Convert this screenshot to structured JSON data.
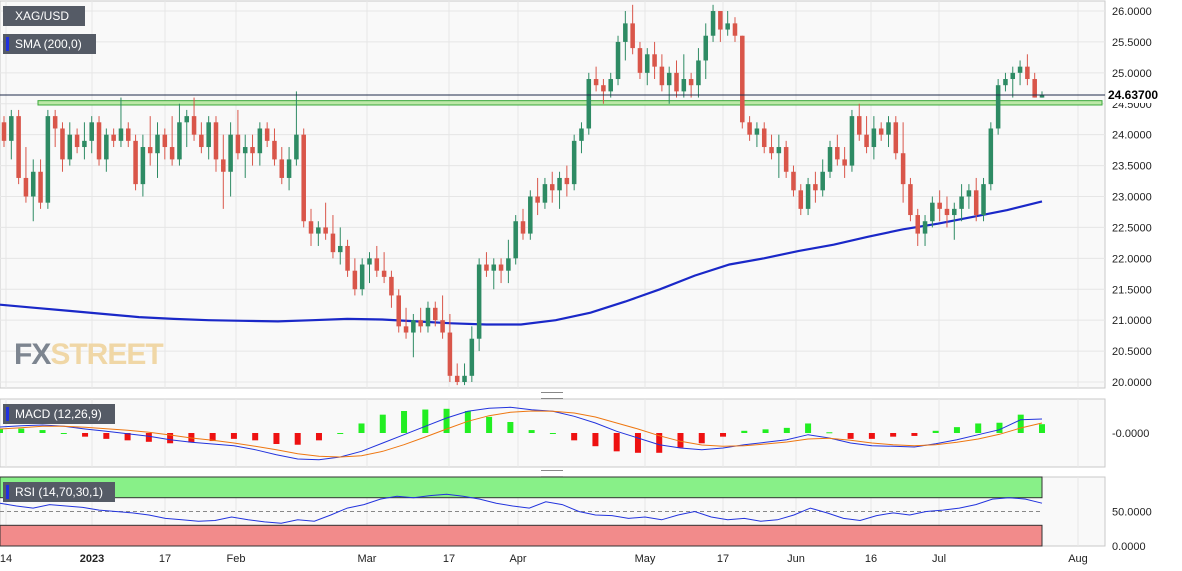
{
  "instrument": "XAG/USD",
  "indicators": {
    "sma_label": "SMA (200,0)",
    "macd_label": "MACD (12,26,9)",
    "rsi_label": "RSI (14,70,30,1)"
  },
  "last_price_label": "24.63700",
  "watermark": {
    "part1": "FX",
    "part2": "STREET"
  },
  "colors": {
    "bull": "#2e8b64",
    "bear": "#d9564a",
    "sma": "#1a28c8",
    "macd_line": "#2233dd",
    "signal_line": "#ee7711",
    "hist_pos": "#22ee22",
    "hist_neg": "#ee1111",
    "rsi_overbought_zone": "#88f088",
    "rsi_oversold_zone": "#f28b8b",
    "support_zone": "#bde8a8"
  },
  "chart_data": [
    {
      "type": "candlestick",
      "instrument": "XAG/USD",
      "timeframe": "daily",
      "y_axis_ticks": [
        "20.0000",
        "20.5000",
        "21.0000",
        "21.5000",
        "22.0000",
        "22.5000",
        "23.0000",
        "23.5000",
        "24.0000",
        "24.5000",
        "25.0000",
        "25.5000",
        "26.0000"
      ],
      "ylim": [
        19.95,
        26.15
      ],
      "x_axis_ticks": [
        "14",
        "2023",
        "17",
        "Feb",
        "Mar",
        "17",
        "Apr",
        "May",
        "17",
        "Jun",
        "16",
        "Jul",
        "Aug"
      ],
      "last_price": 24.637,
      "support_zone": [
        24.48,
        24.55
      ],
      "candles_ohlc": [
        [
          24.2,
          24.3,
          23.8,
          23.9
        ],
        [
          23.9,
          24.4,
          23.6,
          24.3
        ],
        [
          24.3,
          24.4,
          23.2,
          23.3
        ],
        [
          23.3,
          23.8,
          22.9,
          23.0
        ],
        [
          23.0,
          23.6,
          22.6,
          23.4
        ],
        [
          23.4,
          23.6,
          22.8,
          22.9
        ],
        [
          22.9,
          24.4,
          22.8,
          24.3
        ],
        [
          24.3,
          24.4,
          23.8,
          24.1
        ],
        [
          24.1,
          24.2,
          23.4,
          23.6
        ],
        [
          23.6,
          24.2,
          23.5,
          24.0
        ],
        [
          24.0,
          24.1,
          23.7,
          23.8
        ],
        [
          23.8,
          24.2,
          23.6,
          23.9
        ],
        [
          23.9,
          24.3,
          23.7,
          24.2
        ],
        [
          24.2,
          24.3,
          23.5,
          23.6
        ],
        [
          23.6,
          24.1,
          23.4,
          24.0
        ],
        [
          24.0,
          24.1,
          23.8,
          23.9
        ],
        [
          23.9,
          24.6,
          23.8,
          24.1
        ],
        [
          24.1,
          24.2,
          23.8,
          23.9
        ],
        [
          23.9,
          24.0,
          23.1,
          23.2
        ],
        [
          23.2,
          24.0,
          23.0,
          23.8
        ],
        [
          23.8,
          24.3,
          23.5,
          23.7
        ],
        [
          23.7,
          24.2,
          23.3,
          24.0
        ],
        [
          24.0,
          24.1,
          23.6,
          23.8
        ],
        [
          23.8,
          24.3,
          23.5,
          23.6
        ],
        [
          23.6,
          24.5,
          23.5,
          24.2
        ],
        [
          24.2,
          24.4,
          23.8,
          24.3
        ],
        [
          24.3,
          24.6,
          23.9,
          24.0
        ],
        [
          24.0,
          24.2,
          23.7,
          23.8
        ],
        [
          23.8,
          24.3,
          23.6,
          24.2
        ],
        [
          24.2,
          24.3,
          23.4,
          23.6
        ],
        [
          23.6,
          24.0,
          22.8,
          23.4
        ],
        [
          23.4,
          24.2,
          23.0,
          24.0
        ],
        [
          24.0,
          24.4,
          23.6,
          23.7
        ],
        [
          23.7,
          24.0,
          23.3,
          23.8
        ],
        [
          23.8,
          24.0,
          23.5,
          23.7
        ],
        [
          23.7,
          24.2,
          23.5,
          24.1
        ],
        [
          24.1,
          24.2,
          23.8,
          23.9
        ],
        [
          23.9,
          24.1,
          23.5,
          23.6
        ],
        [
          23.6,
          23.8,
          23.2,
          23.3
        ],
        [
          23.3,
          23.8,
          23.1,
          23.6
        ],
        [
          23.6,
          24.7,
          23.5,
          24.0
        ],
        [
          24.0,
          24.1,
          22.5,
          22.6
        ],
        [
          22.6,
          22.8,
          22.2,
          22.4
        ],
        [
          22.4,
          22.6,
          22.2,
          22.5
        ],
        [
          22.5,
          22.9,
          22.3,
          22.4
        ],
        [
          22.4,
          22.7,
          22.0,
          22.1
        ],
        [
          22.1,
          22.5,
          21.9,
          22.2
        ],
        [
          22.2,
          22.3,
          21.7,
          21.8
        ],
        [
          21.8,
          22.0,
          21.4,
          21.5
        ],
        [
          21.5,
          22.0,
          21.4,
          21.9
        ],
        [
          21.9,
          22.1,
          21.6,
          22.0
        ],
        [
          22.0,
          22.2,
          21.7,
          21.8
        ],
        [
          21.8,
          22.1,
          21.6,
          21.7
        ],
        [
          21.7,
          21.8,
          21.2,
          21.4
        ],
        [
          21.4,
          21.5,
          20.8,
          20.9
        ],
        [
          20.9,
          21.2,
          20.7,
          20.8
        ],
        [
          20.8,
          21.1,
          20.4,
          21.0
        ],
        [
          21.0,
          21.2,
          20.8,
          20.9
        ],
        [
          20.9,
          21.3,
          20.8,
          21.2
        ],
        [
          21.2,
          21.3,
          20.9,
          21.0
        ],
        [
          21.0,
          21.4,
          20.7,
          20.8
        ],
        [
          20.8,
          21.1,
          20.0,
          20.1
        ],
        [
          20.1,
          20.3,
          19.95,
          20.0
        ],
        [
          20.0,
          20.3,
          19.95,
          20.1
        ],
        [
          20.1,
          20.9,
          20.0,
          20.7
        ],
        [
          20.7,
          22.0,
          20.5,
          21.9
        ],
        [
          21.9,
          22.1,
          21.7,
          21.8
        ],
        [
          21.8,
          22.0,
          21.5,
          21.9
        ],
        [
          21.9,
          22.0,
          21.6,
          21.8
        ],
        [
          21.8,
          22.3,
          21.6,
          22.0
        ],
        [
          22.0,
          22.7,
          21.9,
          22.6
        ],
        [
          22.6,
          22.8,
          22.3,
          22.4
        ],
        [
          22.4,
          23.1,
          22.3,
          23.0
        ],
        [
          23.0,
          23.3,
          22.7,
          22.9
        ],
        [
          22.9,
          23.3,
          22.8,
          23.2
        ],
        [
          23.2,
          23.4,
          22.9,
          23.1
        ],
        [
          23.1,
          23.4,
          22.8,
          23.3
        ],
        [
          23.3,
          23.5,
          23.0,
          23.2
        ],
        [
          23.2,
          24.0,
          23.1,
          23.9
        ],
        [
          23.9,
          24.2,
          23.7,
          24.1
        ],
        [
          24.1,
          25.0,
          24.0,
          24.9
        ],
        [
          24.9,
          25.1,
          24.7,
          24.8
        ],
        [
          24.8,
          24.9,
          24.5,
          24.7
        ],
        [
          24.7,
          25.0,
          24.6,
          24.9
        ],
        [
          24.9,
          25.6,
          24.8,
          25.5
        ],
        [
          25.5,
          26.0,
          25.2,
          25.8
        ],
        [
          25.8,
          26.1,
          25.3,
          25.4
        ],
        [
          25.4,
          25.5,
          24.9,
          25.0
        ],
        [
          25.0,
          25.4,
          24.8,
          25.3
        ],
        [
          25.3,
          25.5,
          24.9,
          25.1
        ],
        [
          25.1,
          25.3,
          24.7,
          24.8
        ],
        [
          24.8,
          25.1,
          24.5,
          25.0
        ],
        [
          25.0,
          25.2,
          24.6,
          24.7
        ],
        [
          24.7,
          25.3,
          24.6,
          24.9
        ],
        [
          24.9,
          25.0,
          24.6,
          24.8
        ],
        [
          24.8,
          25.4,
          24.6,
          25.2
        ],
        [
          25.2,
          25.8,
          24.9,
          25.6
        ],
        [
          25.6,
          26.1,
          25.5,
          26.0
        ],
        [
          26.0,
          26.0,
          25.5,
          25.7
        ],
        [
          25.7,
          26.0,
          25.6,
          25.8
        ],
        [
          25.8,
          25.9,
          25.5,
          25.6
        ],
        [
          25.6,
          25.6,
          24.1,
          24.2
        ],
        [
          24.2,
          24.3,
          23.9,
          24.0
        ],
        [
          24.0,
          24.2,
          23.8,
          24.1
        ],
        [
          24.1,
          24.2,
          23.7,
          23.8
        ],
        [
          23.8,
          24.0,
          23.6,
          23.7
        ],
        [
          23.7,
          24.0,
          23.3,
          23.8
        ],
        [
          23.8,
          23.9,
          23.3,
          23.4
        ],
        [
          23.4,
          23.5,
          23.0,
          23.1
        ],
        [
          23.1,
          23.2,
          22.7,
          22.8
        ],
        [
          22.8,
          23.3,
          22.7,
          23.2
        ],
        [
          23.2,
          23.4,
          22.9,
          23.1
        ],
        [
          23.1,
          23.6,
          23.0,
          23.4
        ],
        [
          23.4,
          23.9,
          23.3,
          23.8
        ],
        [
          23.8,
          24.0,
          23.5,
          23.6
        ],
        [
          23.6,
          23.8,
          23.3,
          23.5
        ],
        [
          23.5,
          24.4,
          23.4,
          24.3
        ],
        [
          24.3,
          24.5,
          23.9,
          24.0
        ],
        [
          24.0,
          24.3,
          23.7,
          23.8
        ],
        [
          23.8,
          24.3,
          23.6,
          24.1
        ],
        [
          24.1,
          24.2,
          23.9,
          24.0
        ],
        [
          24.0,
          24.3,
          23.8,
          24.2
        ],
        [
          24.2,
          24.3,
          23.6,
          23.7
        ],
        [
          23.7,
          24.2,
          22.9,
          23.2
        ],
        [
          23.2,
          23.3,
          22.6,
          22.7
        ],
        [
          22.7,
          22.8,
          22.2,
          22.4
        ],
        [
          22.4,
          22.7,
          22.2,
          22.6
        ],
        [
          22.6,
          23.0,
          22.5,
          22.9
        ],
        [
          22.9,
          23.1,
          22.6,
          22.8
        ],
        [
          22.8,
          23.0,
          22.5,
          22.7
        ],
        [
          22.7,
          22.9,
          22.3,
          22.8
        ],
        [
          22.8,
          23.2,
          22.6,
          23.0
        ],
        [
          23.0,
          23.2,
          22.8,
          23.1
        ],
        [
          23.1,
          23.3,
          22.6,
          22.7
        ],
        [
          22.7,
          23.3,
          22.6,
          23.2
        ],
        [
          23.2,
          24.2,
          23.1,
          24.1
        ],
        [
          24.1,
          24.9,
          24.0,
          24.8
        ],
        [
          24.8,
          25.0,
          24.7,
          24.9
        ],
        [
          24.9,
          25.1,
          24.6,
          25.0
        ],
        [
          25.0,
          25.2,
          24.8,
          25.1
        ],
        [
          25.1,
          25.3,
          24.8,
          24.9
        ],
        [
          24.9,
          25.0,
          24.6,
          24.6
        ],
        [
          24.6,
          24.7,
          24.6,
          24.637
        ]
      ],
      "sma_200": [
        21.25,
        21.2,
        21.15,
        21.1,
        21.05,
        21.02,
        21.0,
        20.99,
        20.98,
        21.0,
        21.02,
        21.01,
        20.98,
        20.95,
        20.93,
        20.93,
        21.0,
        21.12,
        21.3,
        21.5,
        21.72,
        21.9,
        22.0,
        22.12,
        22.22,
        22.35,
        22.47,
        22.56,
        22.67,
        22.78,
        22.92
      ]
    },
    {
      "type": "histogram_line",
      "name": "MACD (12,26,9)",
      "y_axis_ticks": [
        "-0.0000"
      ],
      "ylim": [
        -0.9,
        0.9
      ],
      "macd": [
        0.18,
        0.22,
        0.24,
        0.2,
        0.12,
        0.05,
        -0.02,
        -0.1,
        -0.2,
        -0.28,
        -0.33,
        -0.38,
        -0.5,
        -0.65,
        -0.78,
        -0.8,
        -0.72,
        -0.55,
        -0.3,
        -0.05,
        0.2,
        0.45,
        0.65,
        0.74,
        0.77,
        0.7,
        0.65,
        0.5,
        0.3,
        0.05,
        -0.15,
        -0.35,
        -0.45,
        -0.5,
        -0.45,
        -0.35,
        -0.28,
        -0.2,
        -0.05,
        -0.15,
        -0.3,
        -0.38,
        -0.4,
        -0.42,
        -0.32,
        -0.2,
        -0.05,
        0.1,
        0.4,
        0.42
      ],
      "signal": [
        0.12,
        0.16,
        0.2,
        0.2,
        0.17,
        0.13,
        0.08,
        0.02,
        -0.06,
        -0.15,
        -0.22,
        -0.3,
        -0.4,
        -0.5,
        -0.62,
        -0.7,
        -0.72,
        -0.68,
        -0.55,
        -0.35,
        -0.12,
        0.12,
        0.35,
        0.52,
        0.62,
        0.66,
        0.65,
        0.6,
        0.48,
        0.3,
        0.12,
        -0.08,
        -0.25,
        -0.36,
        -0.4,
        -0.38,
        -0.33,
        -0.27,
        -0.18,
        -0.16,
        -0.22,
        -0.3,
        -0.35,
        -0.38,
        -0.35,
        -0.28,
        -0.18,
        -0.04,
        0.15,
        0.3
      ]
    },
    {
      "type": "line",
      "name": "RSI (14,70,30,1)",
      "y_axis_ticks": [
        "50.0000",
        "0.0000"
      ],
      "ylim": [
        0,
        100
      ],
      "overbought": 70,
      "oversold": 30,
      "values": [
        62,
        58,
        55,
        60,
        58,
        56,
        52,
        50,
        48,
        45,
        40,
        38,
        36,
        37,
        42,
        38,
        35,
        33,
        38,
        36,
        45,
        55,
        60,
        68,
        72,
        70,
        73,
        75,
        72,
        68,
        62,
        58,
        55,
        64,
        60,
        50,
        45,
        44,
        40,
        42,
        38,
        45,
        50,
        42,
        38,
        40,
        36,
        38,
        45,
        55,
        48,
        40,
        37,
        44,
        48,
        45,
        50,
        52,
        55,
        60,
        68,
        70,
        68,
        62
      ]
    }
  ]
}
